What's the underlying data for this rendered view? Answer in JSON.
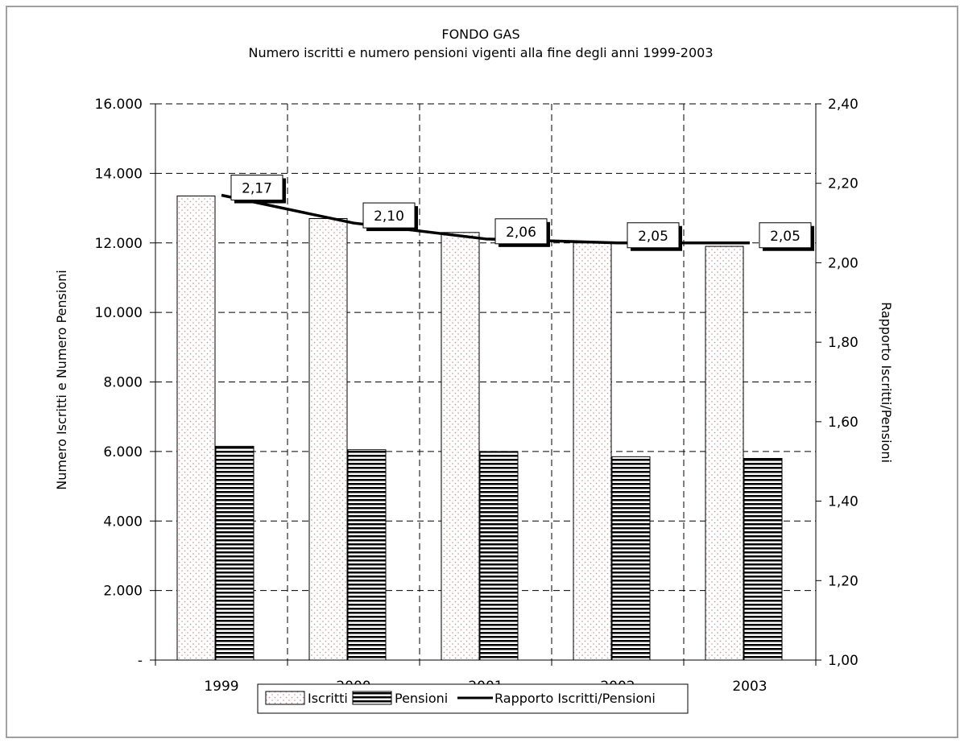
{
  "chart_data": {
    "type": "bar",
    "title": "FONDO GAS",
    "subtitle": "Numero iscritti e numero pensioni vigenti alla fine degli anni 1999-2003",
    "categories": [
      "1999",
      "2000",
      "2001",
      "2002",
      "2003"
    ],
    "ylabel": "Numero Iscritti e Numero Pensioni",
    "y2label": "Rapporto Iscritti/Pensioni",
    "ylim": [
      0,
      16000
    ],
    "y2lim": [
      1.0,
      2.4
    ],
    "yticks": [
      {
        "value": 0,
        "label": "-"
      },
      {
        "value": 2000,
        "label": "2.000"
      },
      {
        "value": 4000,
        "label": "4.000"
      },
      {
        "value": 6000,
        "label": "6.000"
      },
      {
        "value": 8000,
        "label": "8.000"
      },
      {
        "value": 10000,
        "label": "10.000"
      },
      {
        "value": 12000,
        "label": "12.000"
      },
      {
        "value": 14000,
        "label": "14.000"
      },
      {
        "value": 16000,
        "label": "16.000"
      }
    ],
    "y2ticks": [
      {
        "value": 1.0,
        "label": "1,00"
      },
      {
        "value": 1.2,
        "label": "1,20"
      },
      {
        "value": 1.4,
        "label": "1,40"
      },
      {
        "value": 1.6,
        "label": "1,60"
      },
      {
        "value": 1.8,
        "label": "1,80"
      },
      {
        "value": 2.0,
        "label": "2,00"
      },
      {
        "value": 2.2,
        "label": "2,20"
      },
      {
        "value": 2.4,
        "label": "2,40"
      }
    ],
    "grid": true,
    "legend_position": "bottom",
    "series": [
      {
        "name": "Iscritti",
        "kind": "bar",
        "pattern": "dots",
        "values": [
          13350,
          12700,
          12300,
          12000,
          11900
        ]
      },
      {
        "name": "Pensioni",
        "kind": "bar",
        "pattern": "horizontal-stripes",
        "values": [
          6150,
          6050,
          6000,
          5850,
          5800
        ]
      },
      {
        "name": "Rapporto Iscritti/Pensioni",
        "kind": "line",
        "axis": "right",
        "values": [
          2.17,
          2.1,
          2.06,
          2.05,
          2.05
        ],
        "labels": [
          "2,17",
          "2,10",
          "2,06",
          "2,05",
          "2,05"
        ]
      }
    ]
  }
}
